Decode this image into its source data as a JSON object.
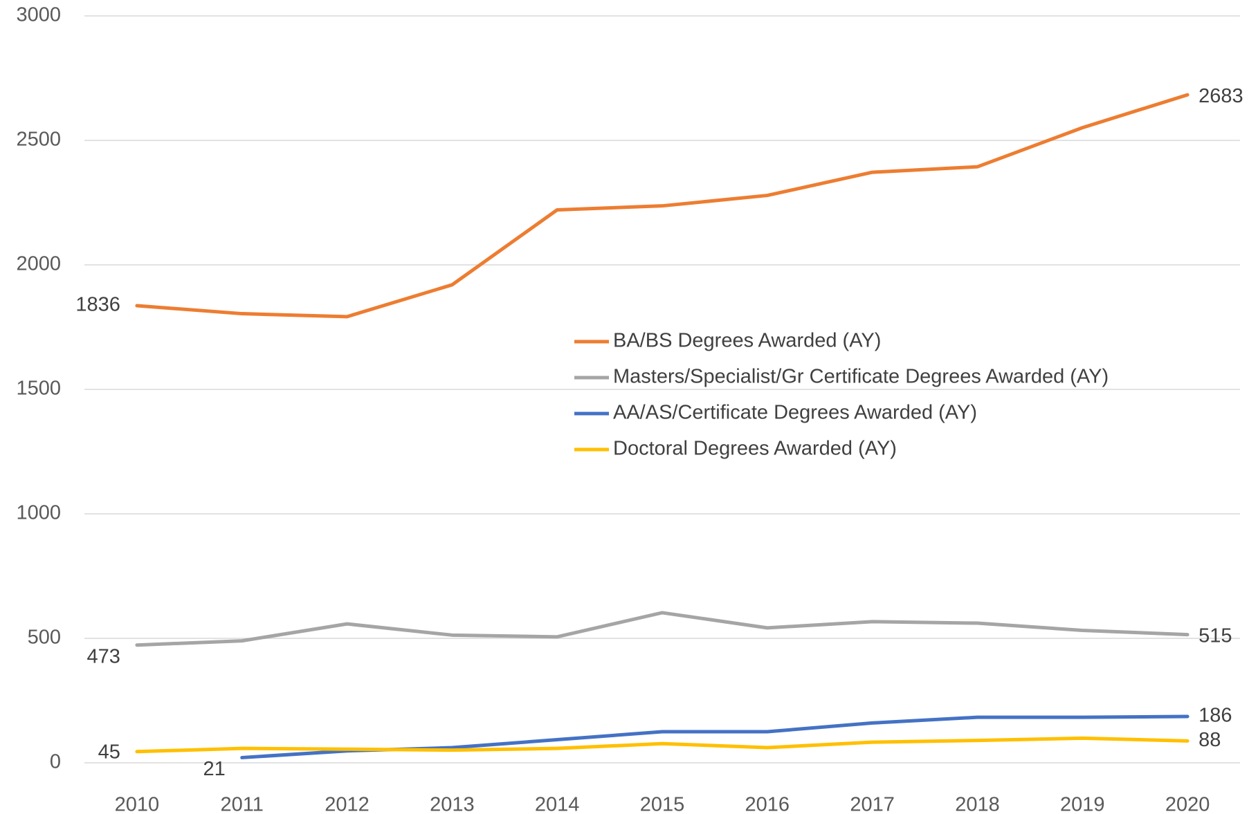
{
  "chart_data": {
    "type": "line",
    "categories": [
      "2010",
      "2011",
      "2012",
      "2013",
      "2014",
      "2015",
      "2016",
      "2017",
      "2018",
      "2019",
      "2020"
    ],
    "series": [
      {
        "name": "BA/BS Degrees Awarded (AY)",
        "color": "#ed7d31",
        "values": [
          1836,
          1804,
          1792,
          1920,
          2221,
          2237,
          2279,
          2372,
          2394,
          2551,
          2683
        ]
      },
      {
        "name": "Masters/Specialist/Gr Certificate Degrees Awarded (AY)",
        "color": "#a5a5a5",
        "values": [
          473,
          490,
          558,
          513,
          506,
          603,
          542,
          567,
          561,
          532,
          515
        ]
      },
      {
        "name": "AA/AS/Certificate Degrees Awarded (AY)",
        "color": "#4472c4",
        "values": [
          null,
          21,
          48,
          61,
          93,
          125,
          125,
          160,
          183,
          183,
          186
        ]
      },
      {
        "name": "Doctoral Degrees Awarded (AY)",
        "color": "#ffc000",
        "values": [
          45,
          58,
          55,
          51,
          58,
          77,
          61,
          83,
          90,
          99,
          88
        ]
      }
    ],
    "ylim": [
      0,
      3000
    ],
    "yticks": [
      0,
      500,
      1000,
      1500,
      2000,
      2500,
      3000
    ],
    "grid": true
  }
}
